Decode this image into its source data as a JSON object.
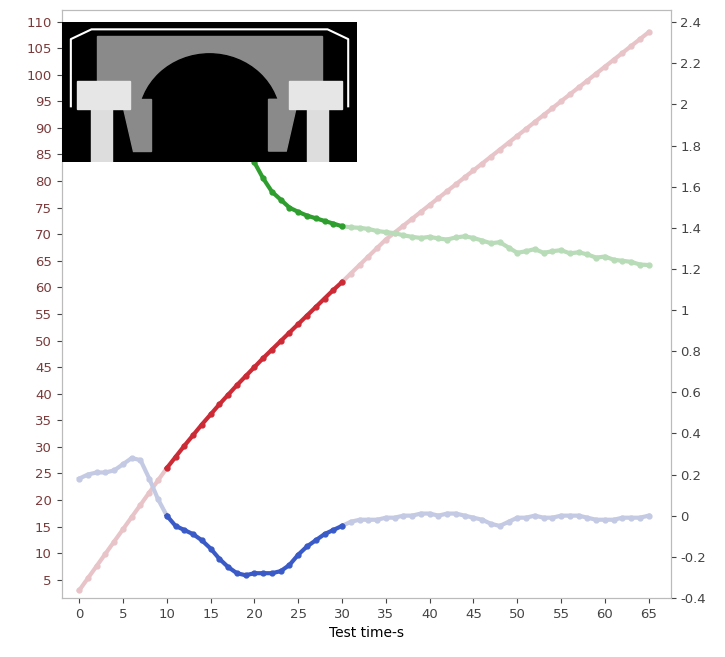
{
  "chart_data": {
    "type": "line",
    "x_label": "Test time-s",
    "x": [
      0,
      1,
      2,
      3,
      4,
      5,
      6,
      7,
      8,
      9,
      10,
      11,
      12,
      13,
      14,
      15,
      16,
      17,
      18,
      19,
      20,
      21,
      22,
      23,
      24,
      25,
      26,
      27,
      28,
      29,
      30,
      31,
      32,
      33,
      34,
      35,
      36,
      37,
      38,
      39,
      40,
      41,
      42,
      43,
      44,
      45,
      46,
      47,
      48,
      49,
      50,
      51,
      52,
      53,
      54,
      55,
      56,
      57,
      58,
      59,
      60,
      61,
      62,
      63,
      64,
      65
    ],
    "xlim": [
      -2,
      67.5
    ],
    "xticks": [
      0,
      5,
      10,
      15,
      20,
      25,
      30,
      35,
      40,
      45,
      50,
      55,
      60,
      65
    ],
    "ylim": [
      1.6,
      112.2
    ],
    "yticks": [
      5,
      10,
      15,
      20,
      25,
      30,
      35,
      40,
      45,
      50,
      55,
      60,
      65,
      70,
      75,
      80,
      85,
      90,
      95,
      100,
      105,
      110
    ],
    "y2lim": [
      -0.4,
      2.46
    ],
    "y2ticks": [
      -0.4,
      -0.2,
      0,
      0.2,
      0.4,
      0.6,
      0.8,
      1,
      1.2,
      1.4,
      1.6,
      1.8,
      2,
      2.2,
      2.4
    ],
    "grid": false,
    "marker": "o",
    "line_style": "solid",
    "series": [
      {
        "color": "#e8c4c8",
        "values": [
          3,
          5.3,
          7.6,
          9.9,
          12.2,
          14.5,
          16.8,
          19.1,
          21.4,
          23.7,
          26,
          null,
          null,
          null,
          null,
          null,
          null,
          null,
          null,
          null,
          null,
          null,
          null,
          null,
          null,
          null,
          null,
          null,
          null,
          null,
          61,
          62.6,
          64.2,
          65.8,
          67.4,
          69,
          70.3,
          71.6,
          72.9,
          74.2,
          75.5,
          76.8,
          78.1,
          79.4,
          80.7,
          82,
          83.3,
          84.6,
          85.9,
          87.2,
          88.5,
          89.8,
          91.1,
          92.4,
          93.7,
          95,
          96.3,
          97.6,
          98.9,
          100.2,
          101.5,
          102.8,
          104.1,
          105.4,
          106.7,
          108
        ]
      },
      {
        "color": "#cc2b36",
        "values": [
          null,
          null,
          null,
          null,
          null,
          null,
          null,
          null,
          null,
          null,
          26,
          28.1,
          30.2,
          32.2,
          34.2,
          36.1,
          38,
          39.8,
          41.6,
          43.3,
          45,
          46.7,
          48.3,
          49.9,
          51.5,
          53.1,
          54.7,
          56.3,
          57.9,
          59.5,
          61,
          null,
          null,
          null,
          null,
          null,
          null,
          null,
          null,
          null,
          null,
          null,
          null,
          null,
          null,
          null,
          null,
          null,
          null,
          null,
          null,
          null,
          null,
          null,
          null,
          null,
          null,
          null,
          null,
          null,
          null,
          null,
          null,
          null,
          null,
          null
        ]
      },
      {
        "color": "#b8dbb8",
        "values": [
          null,
          null,
          null,
          null,
          null,
          null,
          null,
          null,
          null,
          null,
          null,
          null,
          null,
          null,
          null,
          null,
          null,
          null,
          null,
          null,
          null,
          null,
          null,
          null,
          null,
          null,
          null,
          null,
          null,
          null,
          71.5,
          71.3,
          71.2,
          71,
          70.6,
          70.4,
          70.2,
          69.8,
          69.5,
          69.3,
          69.5,
          69.2,
          69,
          69.4,
          69.6,
          69.3,
          68.8,
          68.3,
          68.5,
          67.5,
          66.5,
          66.8,
          67.2,
          66.5,
          66.8,
          67,
          66.4,
          66.6,
          66.2,
          65.6,
          65.8,
          65.2,
          65,
          64.8,
          64.3,
          64.2
        ]
      },
      {
        "color": "#2e9e2e",
        "values": [
          null,
          null,
          null,
          null,
          null,
          null,
          null,
          null,
          null,
          null,
          null,
          null,
          null,
          null,
          null,
          null,
          null,
          null,
          null,
          null,
          83.5,
          80.5,
          78,
          76.5,
          75,
          74.2,
          73.5,
          73,
          72.5,
          72,
          71.5,
          null,
          null,
          null,
          null,
          null,
          null,
          null,
          null,
          null,
          null,
          null,
          null,
          null,
          null,
          null,
          null,
          null,
          null,
          null,
          null,
          null,
          null,
          null,
          null,
          null,
          null,
          null,
          null,
          null,
          null,
          null,
          null,
          null,
          null,
          null
        ]
      },
      {
        "color": "#c4cae3",
        "axis": "y2",
        "values": [
          0.18,
          0.2,
          0.21,
          0.21,
          0.22,
          0.25,
          0.28,
          0.27,
          0.18,
          0.08,
          0.0,
          null,
          null,
          null,
          null,
          null,
          null,
          null,
          null,
          null,
          null,
          null,
          null,
          null,
          null,
          null,
          null,
          null,
          null,
          null,
          -0.05,
          -0.03,
          -0.02,
          -0.02,
          -0.02,
          -0.01,
          -0.01,
          0.0,
          0.0,
          0.01,
          0.01,
          0.0,
          0.01,
          0.01,
          0.0,
          -0.01,
          -0.02,
          -0.04,
          -0.05,
          -0.03,
          -0.01,
          -0.01,
          0.0,
          -0.01,
          -0.01,
          0.0,
          0.0,
          0.0,
          -0.01,
          -0.02,
          -0.02,
          -0.02,
          -0.01,
          -0.01,
          -0.01,
          0.0
        ]
      },
      {
        "color": "#3a5bc7",
        "axis": "y2",
        "values": [
          null,
          null,
          null,
          null,
          null,
          null,
          null,
          null,
          null,
          null,
          0.0,
          -0.05,
          -0.07,
          -0.09,
          -0.12,
          -0.16,
          -0.21,
          -0.25,
          -0.28,
          -0.29,
          -0.28,
          -0.28,
          -0.28,
          -0.27,
          -0.24,
          -0.19,
          -0.15,
          -0.12,
          -0.09,
          -0.07,
          -0.05,
          null,
          null,
          null,
          null,
          null,
          null,
          null,
          null,
          null,
          null,
          null,
          null,
          null,
          null,
          null,
          null,
          null,
          null,
          null,
          null,
          null,
          null,
          null,
          null,
          null,
          null,
          null,
          null,
          null,
          null,
          null,
          null,
          null,
          null,
          null
        ]
      }
    ]
  }
}
